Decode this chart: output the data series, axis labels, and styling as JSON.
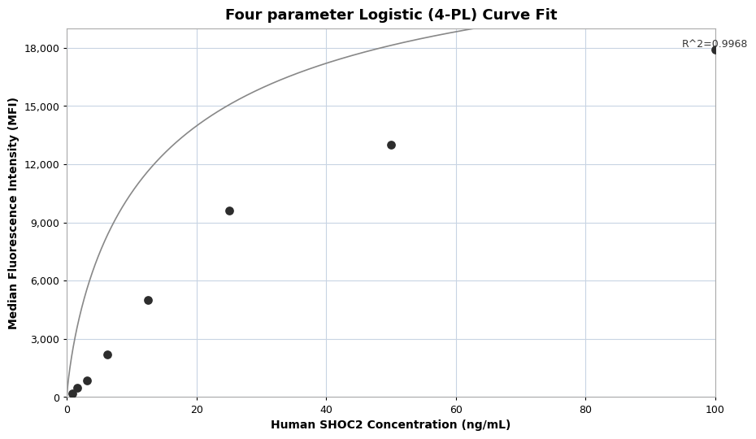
{
  "title": "Four parameter Logistic (4-PL) Curve Fit",
  "xlabel": "Human SHOC2 Concentration (ng/mL)",
  "ylabel": "Median Fluorescence Intensity (MFI)",
  "scatter_x": [
    0.781,
    1.563,
    3.125,
    6.25,
    12.5,
    25.0,
    50.0,
    100.0
  ],
  "scatter_y": [
    190,
    480,
    870,
    2200,
    5000,
    9600,
    13000,
    17900
  ],
  "r_squared": "R^2=0.9968",
  "xlim": [
    0,
    100
  ],
  "ylim": [
    0,
    19000
  ],
  "yticks": [
    0,
    3000,
    6000,
    9000,
    12000,
    15000,
    18000
  ],
  "xticks": [
    0,
    20,
    40,
    60,
    80,
    100
  ],
  "dot_color": "#2d2d2d",
  "dot_size": 60,
  "curve_color": "#888888",
  "grid_color": "#c8d4e3",
  "background_color": "#ffffff",
  "title_fontsize": 13,
  "label_fontsize": 10,
  "tick_fontsize": 9,
  "annotation_fontsize": 9
}
